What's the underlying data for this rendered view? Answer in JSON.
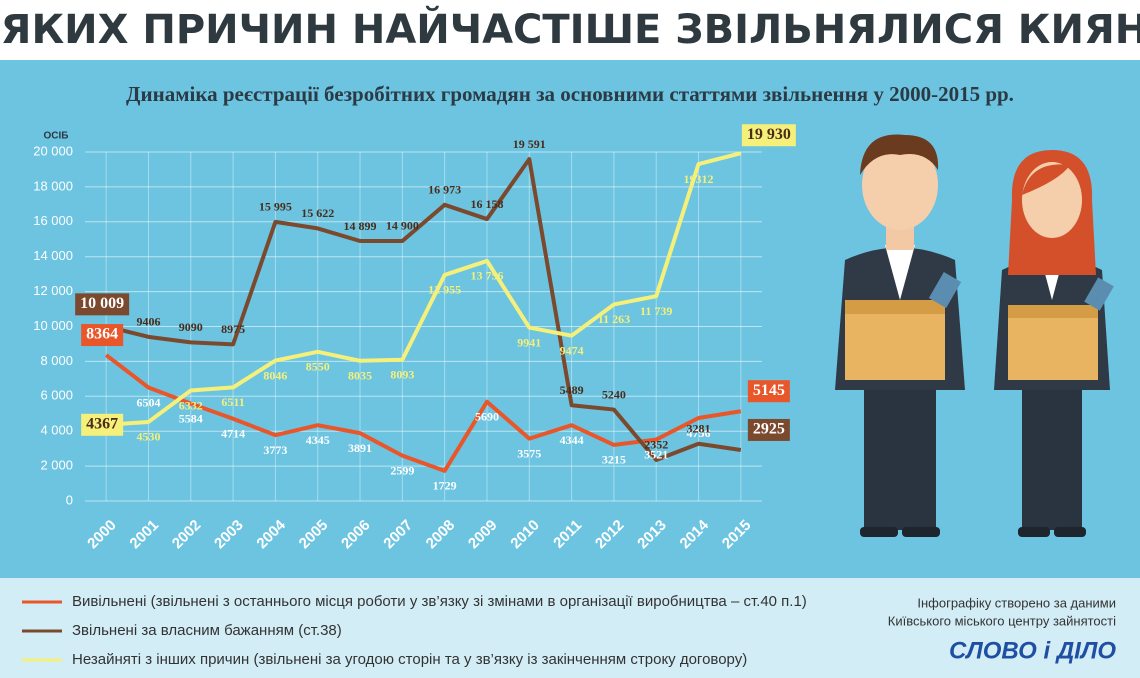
{
  "chart_data": {
    "type": "line",
    "title": "З ЯКИХ ПРИЧИН НАЙЧАСТІШЕ ЗВІЛЬНЯЛИСЯ КИЯНИ",
    "subtitle": "Динаміка реєстрації безробітних громадян за основними статтями звільнення у 2000-2015 рр.",
    "y_label": "ОСІБ",
    "categories": [
      "2000",
      "2001",
      "2002",
      "2003",
      "2004",
      "2005",
      "2006",
      "2007",
      "2008",
      "2009",
      "2010",
      "2011",
      "2012",
      "2013",
      "2014",
      "2015"
    ],
    "ylim": [
      0,
      20000
    ],
    "yticks": [
      0,
      {
        "value": 2000,
        "label": "2 000"
      },
      {
        "value": 4000,
        "label": "4 000"
      },
      {
        "value": 6000,
        "label": "6 000"
      },
      {
        "value": 8000,
        "label": "8 000"
      },
      {
        "value": 10000,
        "label": "10 000"
      },
      {
        "value": 12000,
        "label": "12 000"
      },
      {
        "value": 14000,
        "label": "14 000"
      },
      {
        "value": 16000,
        "label": "16 000"
      },
      {
        "value": 18000,
        "label": "18 000"
      },
      {
        "value": 20000,
        "label": "20 000"
      }
    ],
    "grid": true,
    "series": [
      {
        "name": "Вивільнені (звільнені з останнього місця роботи у зв’язку зі змінами в організації виробництва – ст.40 п.1)",
        "color": "#e8562a",
        "values": [
          8364,
          6504,
          5584,
          4714,
          3773,
          4345,
          3891,
          2599,
          1729,
          5690,
          3575,
          4344,
          3215,
          3521,
          4756,
          5145
        ]
      },
      {
        "name": "Звільнені за власним бажанням (ст.38)",
        "color": "#7b4a2e",
        "values": [
          10009,
          9406,
          9090,
          8975,
          15995,
          15622,
          14899,
          14900,
          16973,
          16158,
          19591,
          5489,
          5240,
          2352,
          3281,
          2925
        ],
        "value_labels": [
          "10 009",
          "9406",
          "9090",
          "8975",
          "15 995",
          "15 622",
          "14 899",
          "14 900",
          "16 973",
          "16 158",
          "19 591",
          "5489",
          "5240",
          "2352",
          "3281",
          "2925"
        ]
      },
      {
        "name": "Незайняті з інших причин (звільнені за угодою сторін та у зв’язку із закінченням строку договору)",
        "color": "#f5f07a",
        "values": [
          4367,
          4530,
          6332,
          6511,
          8046,
          8550,
          8035,
          8093,
          12955,
          13756,
          9941,
          9474,
          11263,
          11739,
          19312,
          19930
        ],
        "value_labels": [
          "4367",
          "4530",
          "6332",
          "6511",
          "8046",
          "8550",
          "8035",
          "8093",
          "12 955",
          "13 756",
          "9941",
          "9474",
          "11 263",
          "11 739",
          "19312",
          "19 930"
        ]
      }
    ]
  },
  "credits": [
    "Інфографіку створено за даними",
    "Київського міського центру зайнятості"
  ],
  "logo": "СЛОВО і ДІЛО"
}
